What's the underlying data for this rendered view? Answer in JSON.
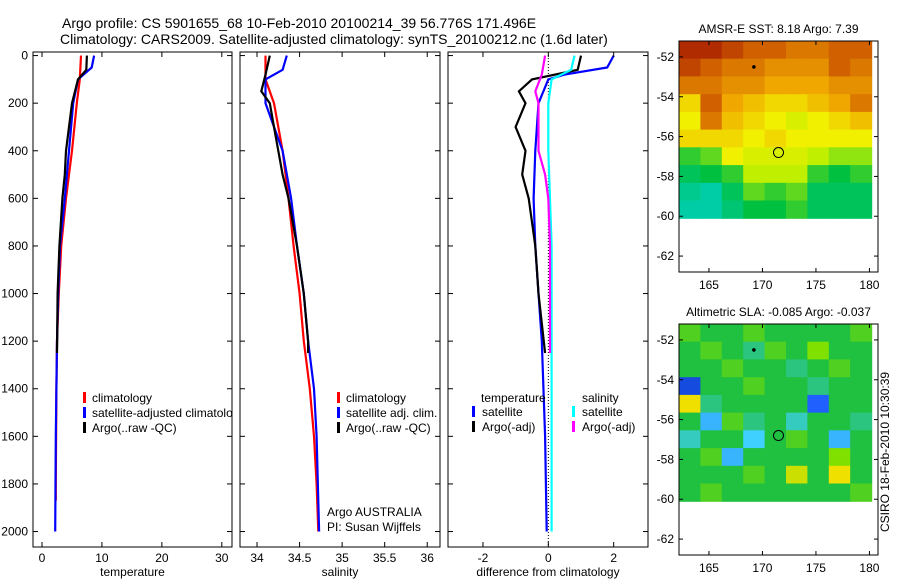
{
  "header": {
    "title_line1": "Argo profile: CS 5901655_68 10-Feb-2010 20100214_39 56.776S 171.496E",
    "title_line2": "Climatology: CARS2009. Satellite-adjusted climatology: synTS_20100212.nc (1.6d later)"
  },
  "footer_stamp": "CSIRO 18-Feb-2010 10:30:39",
  "colors": {
    "climatology": "#ff0000",
    "satellite": "#0000ff",
    "argo": "#000000",
    "sal_satellite": "#00ffff",
    "sal_argo": "#ff00ff"
  },
  "chart_data": [
    {
      "type": "line",
      "id": "temperature",
      "xlabel": "temperature",
      "ylabel": "",
      "xlim": [
        -1.5,
        31.7
      ],
      "ylim": [
        2065,
        -15
      ],
      "xticks": [
        0,
        10,
        20,
        30
      ],
      "yticks": [
        0,
        200,
        400,
        600,
        800,
        1000,
        1200,
        1400,
        1600,
        1800,
        2000
      ],
      "legend": [
        "climatology",
        "satellite-adjusted climatology",
        "Argo(..raw -QC)"
      ],
      "series": [
        {
          "name": "climatology",
          "color": "#ff0000",
          "points": [
            [
              6.5,
              0
            ],
            [
              6.3,
              100
            ],
            [
              5.8,
              200
            ],
            [
              5,
              400
            ],
            [
              4,
              600
            ],
            [
              3.2,
              800
            ],
            [
              2.8,
              1000
            ],
            [
              2.5,
              1200
            ],
            [
              2.4,
              1400
            ],
            [
              2.3,
              1800
            ],
            [
              2.3,
              1870
            ]
          ]
        },
        {
          "name": "satellite-adjusted climatology",
          "color": "#0000ff",
          "points": [
            [
              8.7,
              0
            ],
            [
              8.3,
              50
            ],
            [
              6,
              100
            ],
            [
              5.2,
              200
            ],
            [
              4.5,
              400
            ],
            [
              3.8,
              600
            ],
            [
              3,
              800
            ],
            [
              2.7,
              1000
            ],
            [
              2.5,
              1200
            ],
            [
              2.3,
              1600
            ],
            [
              2.2,
              2000
            ]
          ]
        },
        {
          "name": "Argo(..raw -QC)",
          "color": "#000000",
          "points": [
            [
              7.5,
              0
            ],
            [
              7.4,
              60
            ],
            [
              6,
              100
            ],
            [
              5,
              200
            ],
            [
              4,
              400
            ],
            [
              3.8,
              500
            ],
            [
              3.4,
              600
            ],
            [
              2.9,
              800
            ],
            [
              2.6,
              1000
            ],
            [
              2.5,
              1250
            ]
          ]
        }
      ]
    },
    {
      "type": "line",
      "id": "salinity",
      "xlabel": "salinity",
      "xlim": [
        33.8,
        36.15
      ],
      "ylim": [
        2065,
        -15
      ],
      "xticks": [
        34,
        34.5,
        35,
        35.5,
        36
      ],
      "yticks": [
        0,
        200,
        400,
        600,
        800,
        1000,
        1200,
        1400,
        1600,
        1800,
        2000
      ],
      "legend": [
        "climatology",
        "satellite adj. clim.",
        "Argo(..raw -QC)"
      ],
      "annotation": [
        "Argo AUSTRALIA",
        "PI: Susan Wijffels"
      ],
      "series": [
        {
          "name": "climatology",
          "color": "#ff0000",
          "points": [
            [
              34.1,
              0
            ],
            [
              34.1,
              100
            ],
            [
              34.2,
              200
            ],
            [
              34.3,
              400
            ],
            [
              34.37,
              600
            ],
            [
              34.43,
              800
            ],
            [
              34.5,
              1000
            ],
            [
              34.55,
              1200
            ],
            [
              34.62,
              1400
            ],
            [
              34.67,
              1600
            ],
            [
              34.7,
              1800
            ],
            [
              34.72,
              2000
            ]
          ]
        },
        {
          "name": "satellite adj. clim.",
          "color": "#0000ff",
          "points": [
            [
              34.35,
              0
            ],
            [
              34.3,
              60
            ],
            [
              34.1,
              100
            ],
            [
              34.1,
              200
            ],
            [
              34.3,
              400
            ],
            [
              34.4,
              600
            ],
            [
              34.47,
              800
            ],
            [
              34.55,
              1000
            ],
            [
              34.6,
              1200
            ],
            [
              34.67,
              1400
            ],
            [
              34.7,
              1600
            ],
            [
              34.73,
              2000
            ]
          ]
        },
        {
          "name": "Argo(..raw -QC)",
          "color": "#000000",
          "points": [
            [
              34.15,
              0
            ],
            [
              34.1,
              80
            ],
            [
              34.05,
              150
            ],
            [
              34.15,
              200
            ],
            [
              34.2,
              300
            ],
            [
              34.25,
              400
            ],
            [
              34.3,
              500
            ],
            [
              34.37,
              600
            ],
            [
              34.47,
              800
            ],
            [
              34.55,
              1000
            ],
            [
              34.6,
              1200
            ],
            [
              34.6,
              1250
            ]
          ]
        }
      ]
    },
    {
      "type": "line",
      "id": "difference",
      "xlabel": "difference from climatology",
      "xlim": [
        -3.07,
        3.05
      ],
      "ylim": [
        2065,
        -15
      ],
      "xticks": [
        -2,
        0,
        2
      ],
      "yticks": [
        0,
        200,
        400,
        600,
        800,
        1000,
        1200,
        1400,
        1600,
        1800,
        2000
      ],
      "legend_headers": [
        "temperature",
        "salinity"
      ],
      "legend": [
        "satellite",
        "Argo(-adj)",
        "satellite",
        "Argo(-adj)"
      ],
      "series": [
        {
          "name": "temperature satellite",
          "color": "#0000ff",
          "points": [
            [
              2,
              0
            ],
            [
              1.8,
              50
            ],
            [
              0.5,
              80
            ],
            [
              0,
              100
            ],
            [
              -0.3,
              200
            ],
            [
              -0.4,
              400
            ],
            [
              -0.45,
              600
            ],
            [
              -0.4,
              800
            ],
            [
              -0.3,
              1000
            ],
            [
              -0.2,
              1200
            ],
            [
              -0.1,
              1600
            ],
            [
              -0.05,
              2000
            ]
          ]
        },
        {
          "name": "temperature Argo(-adj)",
          "color": "#000000",
          "points": [
            [
              1,
              0
            ],
            [
              0.9,
              60
            ],
            [
              -0.5,
              100
            ],
            [
              -0.9,
              150
            ],
            [
              -0.7,
              200
            ],
            [
              -1,
              300
            ],
            [
              -0.7,
              400
            ],
            [
              -0.8,
              500
            ],
            [
              -0.6,
              600
            ],
            [
              -0.4,
              800
            ],
            [
              -0.3,
              1000
            ],
            [
              -0.1,
              1250
            ]
          ]
        },
        {
          "name": "salinity satellite",
          "color": "#00ffff",
          "points": [
            [
              0.8,
              0
            ],
            [
              0.7,
              60
            ],
            [
              0.1,
              100
            ],
            [
              0,
              200
            ],
            [
              0,
              400
            ],
            [
              0.05,
              600
            ],
            [
              0.1,
              800
            ],
            [
              0.1,
              1000
            ],
            [
              0.1,
              1400
            ],
            [
              0.1,
              2000
            ]
          ]
        },
        {
          "name": "salinity Argo(-adj)",
          "color": "#ff00ff",
          "points": [
            [
              -0.1,
              0
            ],
            [
              -0.2,
              80
            ],
            [
              -0.4,
              150
            ],
            [
              -0.3,
              200
            ],
            [
              -0.3,
              400
            ],
            [
              -0.1,
              500
            ],
            [
              0,
              600
            ],
            [
              0.05,
              800
            ],
            [
              0.05,
              1000
            ],
            [
              0.05,
              1250
            ]
          ]
        }
      ]
    },
    {
      "type": "heatmap",
      "id": "sst_map",
      "title": "AMSR-E SST: 8.18 Argo: 7.39",
      "xlim": [
        162.2,
        180.8
      ],
      "ylim": [
        -62.8,
        -51.2
      ],
      "data_extent": {
        "lon": [
          162.2,
          180.2
        ],
        "lat": [
          -60.1,
          -51.2
        ]
      },
      "xticks": [
        165,
        170,
        175,
        180
      ],
      "yticks": [
        -52,
        -54,
        -56,
        -58,
        -60,
        -62
      ],
      "argo_position": [
        171.5,
        -56.8
      ],
      "grid": [
        [
          0.95,
          0.95,
          0.9,
          0.85,
          0.85,
          0.8,
          0.8,
          0.85,
          0.85
        ],
        [
          0.9,
          0.85,
          0.8,
          0.8,
          0.75,
          0.75,
          0.75,
          0.85,
          0.8
        ],
        [
          0.8,
          0.8,
          0.75,
          0.75,
          0.7,
          0.7,
          0.7,
          0.75,
          0.75
        ],
        [
          0.6,
          0.85,
          0.7,
          0.65,
          0.6,
          0.6,
          0.65,
          0.7,
          0.8
        ],
        [
          0.55,
          0.8,
          0.65,
          0.6,
          0.55,
          0.5,
          0.55,
          0.6,
          0.65
        ],
        [
          0.6,
          0.6,
          0.6,
          0.55,
          0.6,
          0.55,
          0.55,
          0.55,
          0.55
        ],
        [
          0.3,
          0.35,
          0.55,
          0.5,
          0.5,
          0.5,
          0.45,
          0.4,
          0.4
        ],
        [
          0.2,
          0.25,
          0.3,
          0.45,
          0.45,
          0.45,
          0.3,
          0.25,
          0.3
        ],
        [
          0.1,
          0.05,
          0.2,
          0.35,
          0.3,
          0.35,
          0.2,
          0.2,
          0.2
        ],
        [
          0.05,
          0.05,
          0.15,
          0.25,
          0.25,
          0.3,
          0.2,
          0.2,
          0.2
        ]
      ]
    },
    {
      "type": "heatmap",
      "id": "sla_map",
      "title": "Altimetric SLA: -0.085 Argo: -0.037",
      "xlim": [
        162.2,
        180.8
      ],
      "ylim": [
        -62.8,
        -51.2
      ],
      "data_extent": {
        "lon": [
          162.2,
          180.2
        ],
        "lat": [
          -60.1,
          -51.2
        ]
      },
      "xticks": [
        165,
        170,
        175,
        180
      ],
      "yticks": [
        -52,
        -54,
        -56,
        -58,
        -60,
        -62
      ],
      "argo_position": [
        171.5,
        -56.8
      ],
      "grid": [
        [
          0.55,
          0.5,
          0.5,
          0.55,
          0.5,
          0.5,
          0.5,
          0.5,
          0.55
        ],
        [
          0.5,
          0.55,
          0.5,
          0.45,
          0.55,
          0.5,
          0.6,
          0.5,
          0.5
        ],
        [
          0.5,
          0.5,
          0.55,
          0.5,
          0.5,
          0.45,
          0.5,
          0.55,
          0.5
        ],
        [
          0.1,
          0.5,
          0.5,
          0.55,
          0.5,
          0.5,
          0.45,
          0.5,
          0.5
        ],
        [
          0.75,
          0.45,
          0.5,
          0.5,
          0.5,
          0.5,
          0.15,
          0.5,
          0.5
        ],
        [
          0.5,
          0.3,
          0.55,
          0.45,
          0.5,
          0.4,
          0.5,
          0.5,
          0.45
        ],
        [
          0.4,
          0.5,
          0.5,
          0.35,
          0.5,
          0.55,
          0.5,
          0.3,
          0.5
        ],
        [
          0.5,
          0.55,
          0.3,
          0.5,
          0.5,
          0.5,
          0.5,
          0.6,
          0.5
        ],
        [
          0.5,
          0.5,
          0.5,
          0.55,
          0.5,
          0.7,
          0.5,
          0.75,
          0.5
        ],
        [
          0.5,
          0.55,
          0.5,
          0.5,
          0.5,
          0.5,
          0.5,
          0.5,
          0.55
        ]
      ]
    }
  ]
}
